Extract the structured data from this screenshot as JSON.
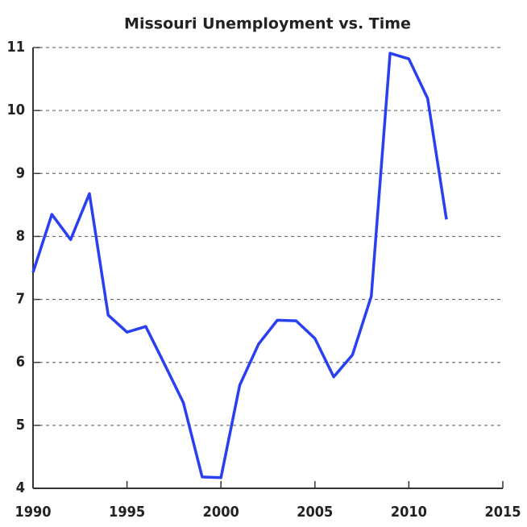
{
  "chart_data": {
    "type": "line",
    "title": "Missouri Unemployment vs. Time",
    "x": [
      1990,
      1991,
      1992,
      1993,
      1994,
      1995,
      1996,
      1997,
      1998,
      1999,
      2000,
      2001,
      2002,
      2003,
      2004,
      2005,
      2006,
      2007,
      2008,
      2009,
      2010,
      2011,
      2012
    ],
    "series": [
      {
        "color": "#2a3ff0",
        "values": [
          7.43,
          8.35,
          7.95,
          8.68,
          6.75,
          6.48,
          6.57,
          5.97,
          5.36,
          4.18,
          4.17,
          5.64,
          6.29,
          6.67,
          6.66,
          6.38,
          5.77,
          6.12,
          7.05,
          10.91,
          10.82,
          10.19,
          8.27
        ]
      }
    ],
    "xlim": [
      1990,
      2015
    ],
    "xticks": [
      1990,
      1995,
      2000,
      2005,
      2010,
      2015
    ],
    "ylim": [
      4,
      11
    ],
    "yticks": [
      4,
      5,
      6,
      7,
      8,
      9,
      10,
      11
    ],
    "grid": true
  }
}
